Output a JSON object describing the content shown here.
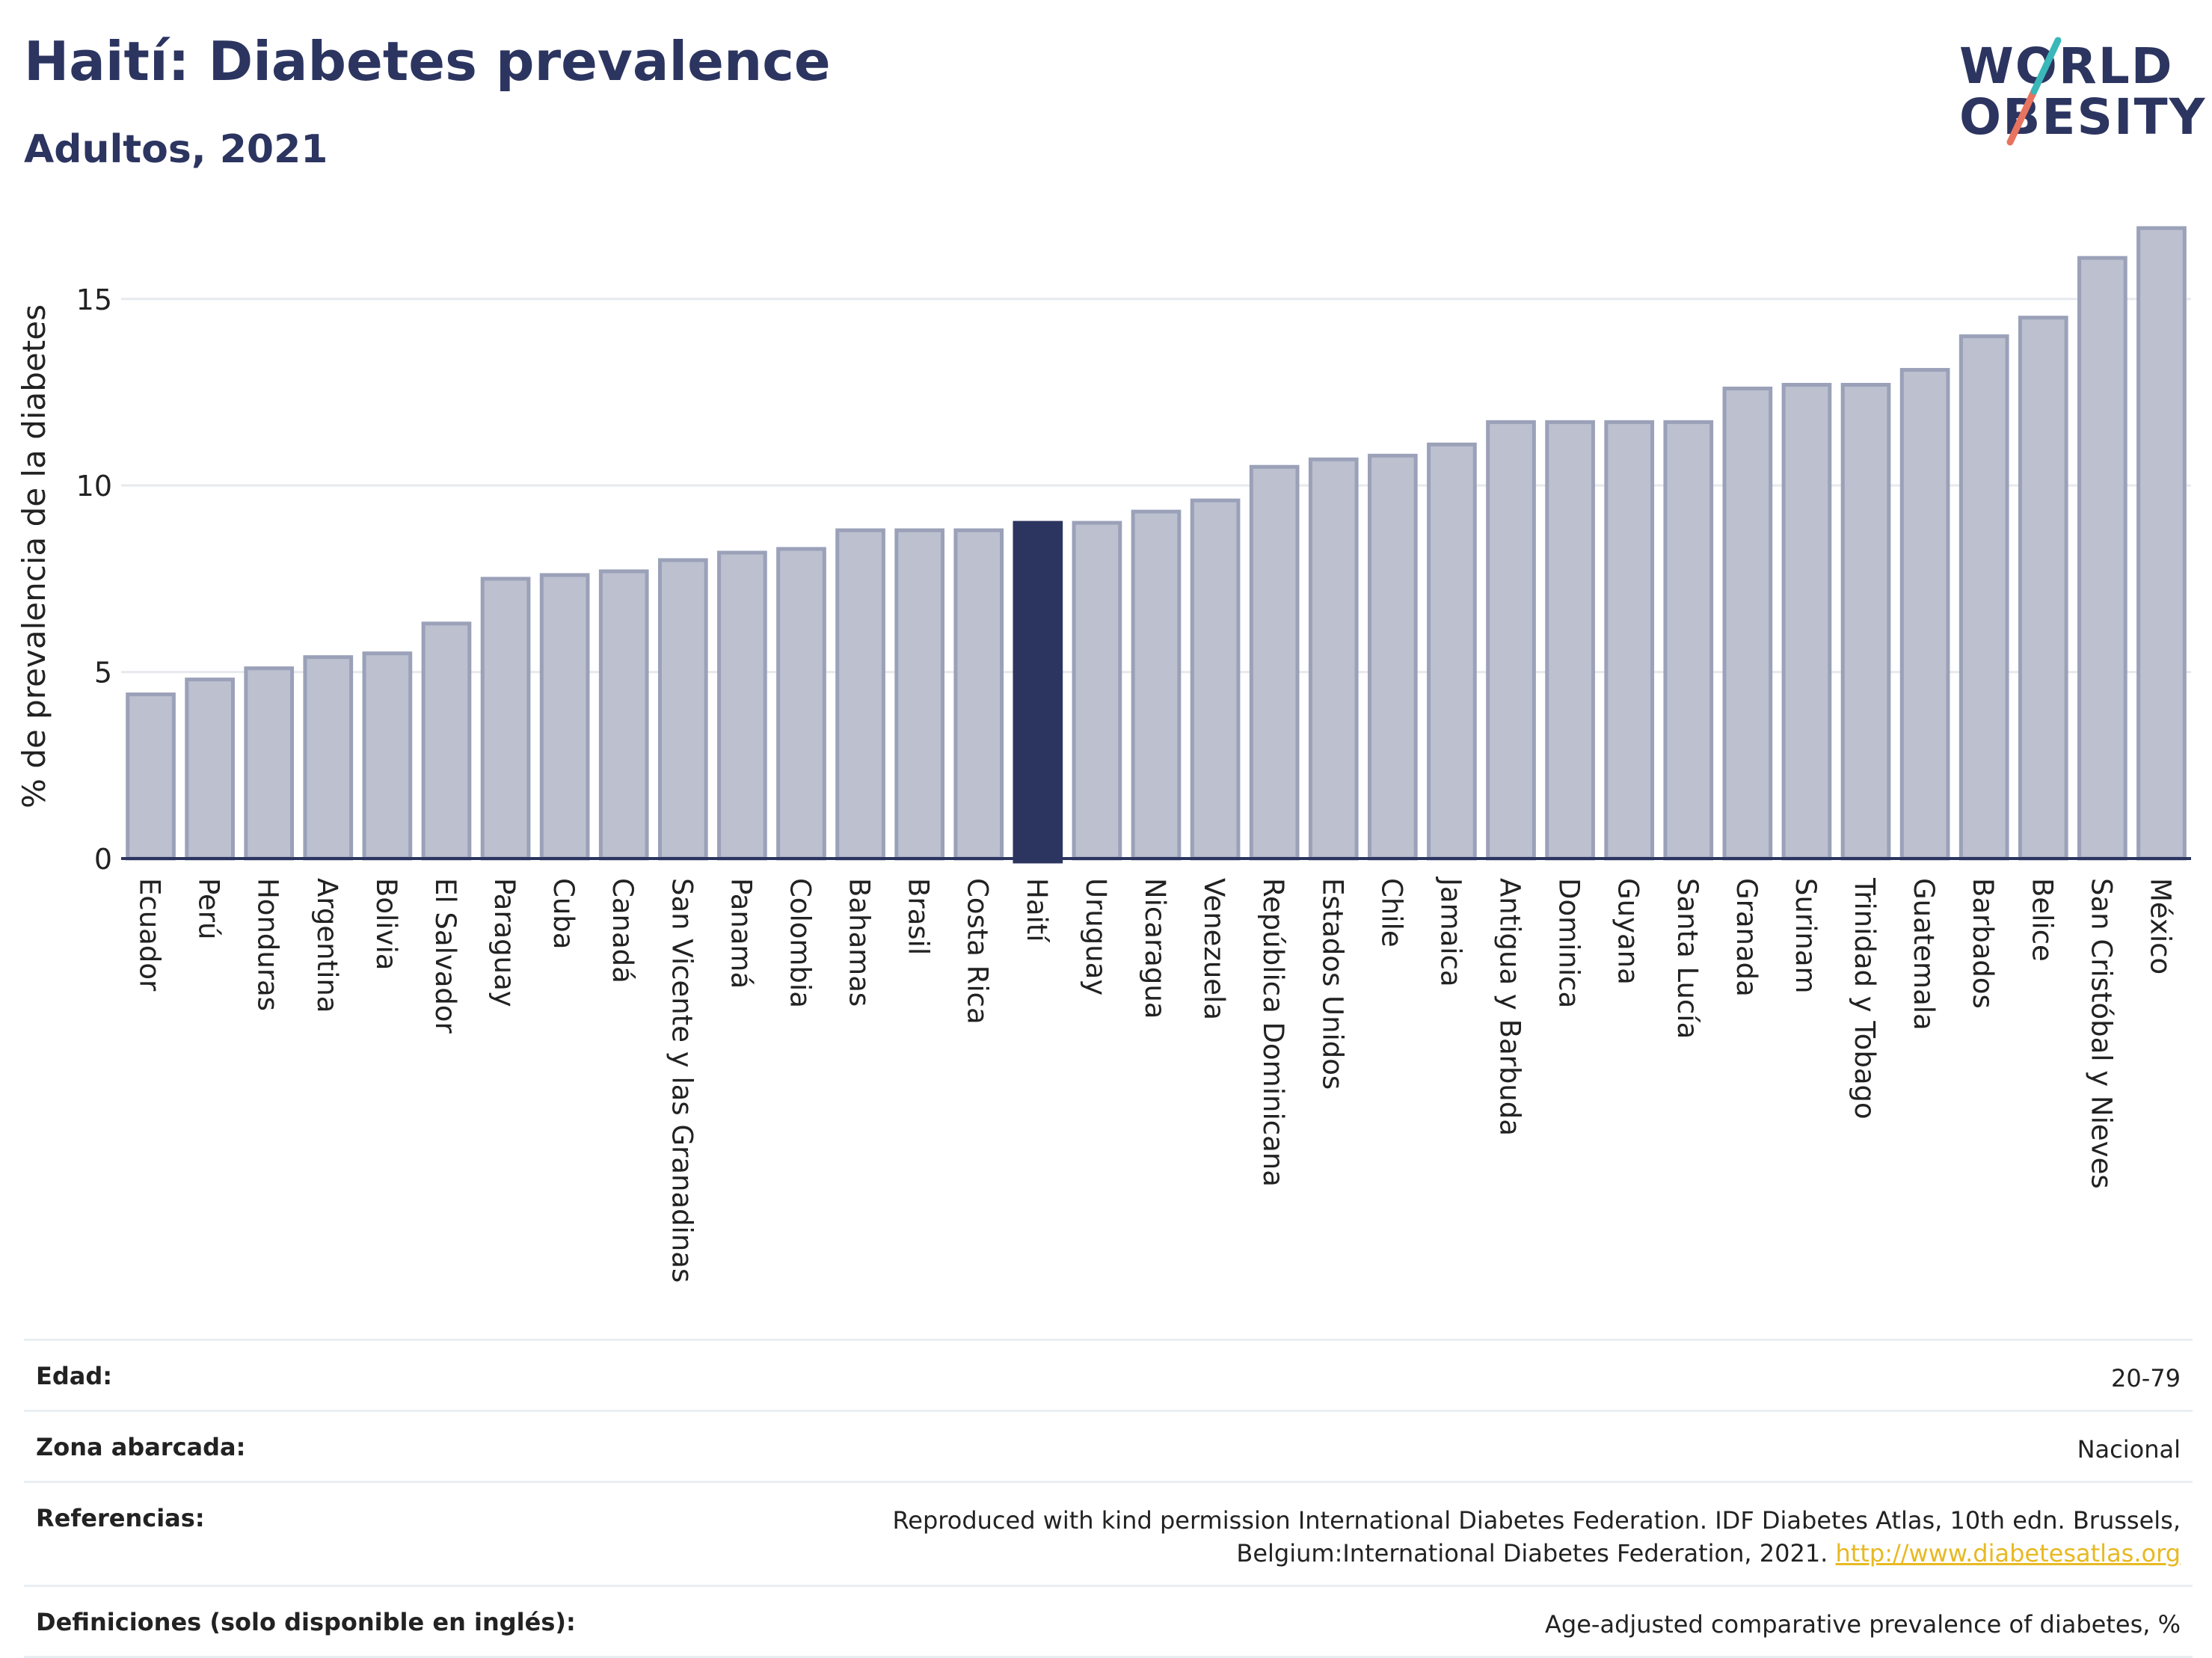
{
  "header": {
    "title": "Haití: Diabetes prevalence",
    "subtitle": "Adultos, 2021"
  },
  "logo": {
    "line1": "WORLD",
    "line2": "OBESITY"
  },
  "colors": {
    "bar": "#bcc0cf",
    "bar_border": "#9aa1b8",
    "highlight": "#2c3560",
    "grid": "#e6e9ee",
    "title": "#2c3560"
  },
  "chart_data": {
    "type": "bar",
    "title": "Haití: Diabetes prevalence",
    "subtitle": "Adultos, 2021",
    "ylabel": "% de prevalencia de la diabetes",
    "xlabel": "",
    "ylim": [
      0,
      17
    ],
    "yticks": [
      0,
      5,
      10,
      15
    ],
    "grid": true,
    "highlight": "Haití",
    "categories": [
      "Ecuador",
      "Perú",
      "Honduras",
      "Argentina",
      "Bolivia",
      "El Salvador",
      "Paraguay",
      "Cuba",
      "Canadá",
      "San Vicente y las Granadinas",
      "Panamá",
      "Colombia",
      "Bahamas",
      "Brasil",
      "Costa Rica",
      "Haití",
      "Uruguay",
      "Nicaragua",
      "Venezuela",
      "República Dominicana",
      "Estados Unidos",
      "Chile",
      "Jamaica",
      "Antigua y Barbuda",
      "Dominica",
      "Guyana",
      "Santa Lucía",
      "Granada",
      "Surinam",
      "Trinidad y Tobago",
      "Guatemala",
      "Barbados",
      "Belice",
      "San Cristóbal y Nieves",
      "México"
    ],
    "values": [
      4.4,
      4.8,
      5.1,
      5.4,
      5.5,
      6.3,
      7.5,
      7.6,
      7.7,
      8.0,
      8.2,
      8.3,
      8.8,
      8.8,
      8.8,
      9.0,
      9.0,
      9.3,
      9.6,
      10.5,
      10.7,
      10.8,
      11.1,
      11.7,
      11.7,
      11.7,
      11.7,
      12.6,
      12.7,
      12.7,
      13.1,
      14.0,
      14.5,
      16.1,
      16.9
    ]
  },
  "info": [
    {
      "label": "Edad:",
      "value": "20-79"
    },
    {
      "label": "Zona abarcada:",
      "value": "Nacional"
    },
    {
      "label": "Referencias:",
      "value": "Reproduced with kind permission International Diabetes Federation.  IDF Diabetes Atlas, 10th edn. Brussels, Belgium:International Diabetes Federation, 2021. ",
      "link": "http://www.diabetesatlas.org"
    },
    {
      "label": "Definiciones (solo disponible en inglés):",
      "value": "Age-adjusted comparative prevalence of diabetes, %"
    }
  ]
}
